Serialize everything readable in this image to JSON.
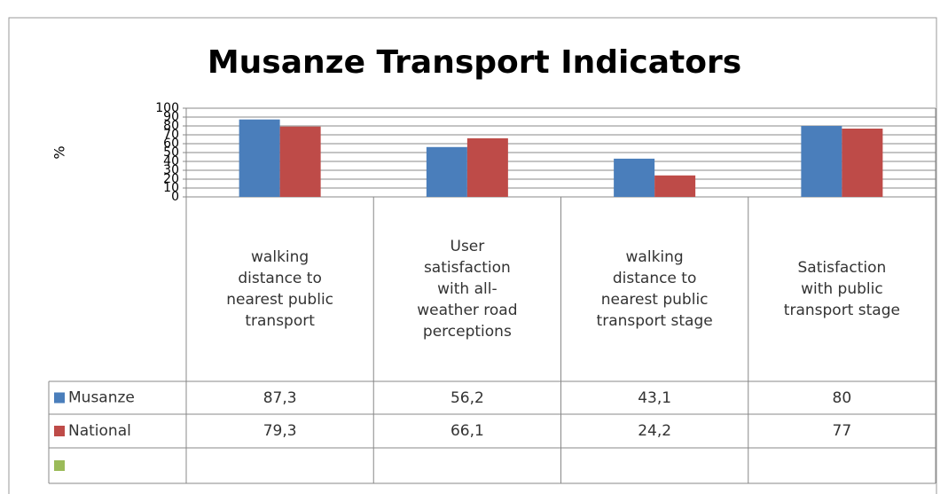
{
  "chart_data": {
    "type": "bar",
    "title": "Musanze Transport Indicators",
    "y_label": "%",
    "categories": [
      "walking distance to nearest public transport",
      "User satisfaction with all-weather road perceptions",
      "walking distance to nearest public transport stage",
      "Satisfaction with public transport stage"
    ],
    "series": [
      {
        "name": "Musanze",
        "color": "#4a7ebb",
        "values": [
          87.3,
          56.2,
          43.1,
          80
        ],
        "value_labels": [
          "87,3",
          "56,2",
          "43,1",
          "80"
        ]
      },
      {
        "name": "National",
        "color": "#be4b48",
        "values": [
          79.3,
          66.1,
          24.2,
          77
        ],
        "value_labels": [
          "79,3",
          "66,1",
          "24,2",
          "77"
        ]
      }
    ],
    "ylim": [
      0,
      100
    ],
    "yticks": [
      0,
      10,
      20,
      30,
      40,
      50,
      60,
      70,
      80,
      90,
      100
    ],
    "grid": true
  }
}
